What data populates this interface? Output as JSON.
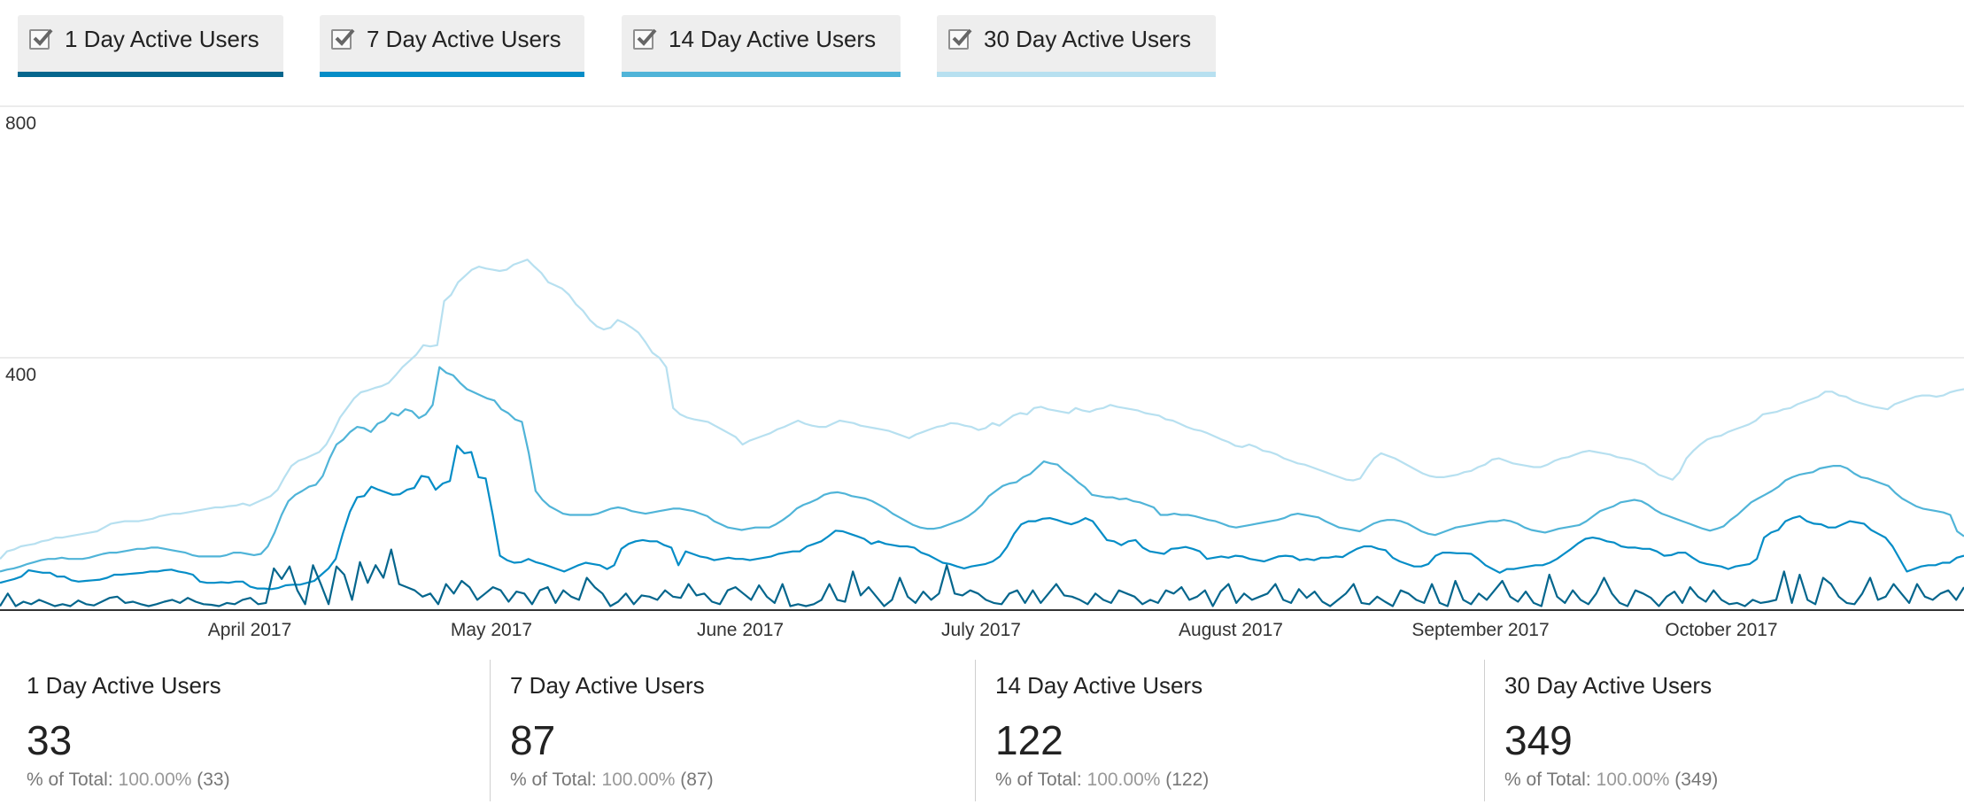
{
  "legend": {
    "items": [
      {
        "label": "1 Day Active Users",
        "color": "#05668d",
        "checked": true
      },
      {
        "label": "7 Day Active Users",
        "color": "#058dc7",
        "checked": true
      },
      {
        "label": "14 Day Active Users",
        "color": "#50b4d8",
        "checked": true
      },
      {
        "label": "30 Day Active Users",
        "color": "#b7e0f0",
        "checked": true
      }
    ]
  },
  "chart_data": {
    "type": "line",
    "ylim": [
      0,
      800
    ],
    "yticks": [
      "400",
      "800"
    ],
    "xticks": [
      "April 2017",
      "May 2017",
      "June 2017",
      "July 2017",
      "August 2017",
      "September 2017",
      "October 2017"
    ],
    "grid": true,
    "legend_position": "top",
    "series": [
      {
        "name": "1 Day Active Users",
        "color": "#05668d",
        "values": [
          5,
          25,
          5,
          12,
          8,
          15,
          10,
          5,
          8,
          5,
          14,
          8,
          6,
          12,
          18,
          20,
          10,
          12,
          8,
          5,
          8,
          12,
          15,
          10,
          18,
          12,
          8,
          7,
          5,
          10,
          8,
          15,
          18,
          8,
          10,
          65,
          48,
          68,
          30,
          8,
          70,
          40,
          8,
          68,
          55,
          15,
          75,
          42,
          70,
          50,
          95,
          40,
          35,
          30,
          20,
          25,
          8,
          40,
          25,
          45,
          35,
          15,
          25,
          35,
          30,
          12,
          28,
          25,
          8,
          30,
          35,
          10,
          30,
          20,
          15,
          50,
          35,
          25,
          5,
          12,
          25,
          8,
          22,
          20,
          15,
          30,
          20,
          18,
          40,
          22,
          25,
          12,
          8,
          30,
          35,
          25,
          15,
          38,
          20,
          10,
          40,
          5,
          8,
          5,
          8,
          15,
          40,
          15,
          12,
          60,
          22,
          35,
          20,
          5,
          15,
          50,
          20,
          10,
          28,
          15,
          25,
          70,
          25,
          22,
          30,
          25,
          15,
          10,
          8,
          25,
          30,
          10,
          30,
          10,
          25,
          40,
          22,
          20,
          15,
          8,
          25,
          15,
          10,
          30,
          25,
          20,
          8,
          15,
          10,
          30,
          25,
          35,
          15,
          20,
          30,
          5,
          28,
          40,
          10,
          25,
          15,
          20,
          25,
          40,
          15,
          10,
          32,
          18,
          28,
          12,
          5,
          15,
          25,
          40,
          10,
          8,
          20,
          12,
          5,
          30,
          25,
          15,
          10,
          40,
          10,
          5,
          45,
          15,
          8,
          25,
          15,
          30,
          45,
          20,
          12,
          28,
          10,
          5,
          55,
          20,
          10,
          30,
          15,
          8,
          25,
          50,
          25,
          10,
          5,
          30,
          25,
          18,
          5,
          20,
          28,
          10,
          35,
          20,
          12,
          30,
          15,
          8,
          10,
          5,
          15,
          10,
          12,
          15,
          60,
          10,
          55,
          15,
          8,
          50,
          40,
          20,
          10,
          8,
          25,
          50,
          15,
          20,
          40,
          25,
          10,
          40,
          20,
          15,
          25,
          30,
          15,
          35
        ]
      },
      {
        "name": "7 Day Active Users",
        "color": "#058dc7",
        "values": [
          42,
          45,
          48,
          52,
          62,
          60,
          58,
          58,
          52,
          52,
          46,
          44,
          45,
          46,
          47,
          50,
          55,
          55,
          56,
          57,
          58,
          60,
          60,
          62,
          63,
          60,
          58,
          55,
          44,
          42,
          42,
          43,
          42,
          44,
          44,
          36,
          33,
          33,
          32,
          34,
          38,
          39,
          39,
          42,
          45,
          55,
          65,
          80,
          120,
          155,
          178,
          180,
          195,
          190,
          186,
          182,
          183,
          190,
          193,
          212,
          210,
          190,
          200,
          204,
          260,
          248,
          250,
          210,
          208,
          150,
          85,
          78,
          74,
          75,
          80,
          75,
          72,
          68,
          64,
          60,
          65,
          70,
          74,
          72,
          70,
          64,
          70,
          96,
          104,
          108,
          110,
          108,
          108,
          102,
          98,
          70,
          92,
          88,
          84,
          82,
          78,
          80,
          82,
          80,
          80,
          78,
          80,
          82,
          84,
          88,
          90,
          92,
          92,
          100,
          104,
          108,
          116,
          125,
          124,
          120,
          116,
          112,
          104,
          108,
          104,
          102,
          100,
          100,
          98,
          90,
          86,
          80,
          74,
          72,
          68,
          65,
          68,
          70,
          72,
          76,
          84,
          99,
          120,
          135,
          140,
          140,
          144,
          145,
          142,
          138,
          135,
          139,
          145,
          140,
          125,
          110,
          108,
          102,
          108,
          110,
          98,
          92,
          90,
          88,
          96,
          97,
          99,
          96,
          92,
          80,
          82,
          84,
          82,
          85,
          84,
          80,
          78,
          76,
          80,
          84,
          85,
          84,
          78,
          80,
          78,
          82,
          82,
          84,
          83,
          90,
          96,
          100,
          100,
          96,
          94,
          82,
          76,
          72,
          68,
          68,
          72,
          85,
          90,
          90,
          89,
          89,
          88,
          80,
          70,
          64,
          58,
          64,
          64,
          66,
          68,
          70,
          70,
          74,
          80,
          88,
          96,
          105,
          112,
          114,
          112,
          108,
          106,
          100,
          98,
          98,
          96,
          96,
          92,
          85,
          86,
          90,
          90,
          82,
          75,
          72,
          70,
          68,
          64,
          68,
          70,
          72,
          80,
          114,
          122,
          126,
          140,
          145,
          148,
          140,
          136,
          135,
          130,
          130,
          135,
          140,
          138,
          136,
          126,
          120,
          114,
          100,
          80,
          60,
          64,
          68,
          70,
          70,
          74,
          74,
          82,
          85
        ]
      },
      {
        "name": "14 Day Active Users",
        "color": "#50b4d8",
        "values": [
          60,
          63,
          65,
          68,
          72,
          75,
          78,
          80,
          80,
          82,
          80,
          80,
          80,
          82,
          85,
          88,
          90,
          90,
          92,
          94,
          96,
          96,
          98,
          98,
          96,
          94,
          92,
          90,
          86,
          84,
          84,
          84,
          84,
          86,
          90,
          90,
          88,
          86,
          88,
          100,
          122,
          150,
          172,
          182,
          188,
          195,
          198,
          212,
          240,
          262,
          270,
          282,
          290,
          288,
          282,
          295,
          300,
          312,
          308,
          318,
          315,
          304,
          310,
          325,
          385,
          376,
          372,
          360,
          350,
          345,
          340,
          335,
          332,
          318,
          312,
          302,
          298,
          248,
          188,
          174,
          164,
          158,
          152,
          150,
          150,
          150,
          150,
          152,
          156,
          160,
          162,
          160,
          156,
          154,
          152,
          154,
          156,
          158,
          160,
          160,
          158,
          156,
          152,
          148,
          140,
          135,
          130,
          128,
          126,
          128,
          130,
          130,
          130,
          135,
          142,
          150,
          160,
          166,
          170,
          175,
          182,
          185,
          186,
          184,
          180,
          178,
          176,
          172,
          166,
          160,
          152,
          146,
          140,
          134,
          130,
          128,
          128,
          130,
          134,
          138,
          142,
          148,
          156,
          166,
          180,
          188,
          196,
          200,
          202,
          210,
          215,
          225,
          235,
          232,
          230,
          220,
          212,
          202,
          194,
          182,
          180,
          178,
          178,
          175,
          176,
          172,
          170,
          166,
          162,
          150,
          150,
          152,
          150,
          150,
          148,
          145,
          142,
          140,
          136,
          132,
          130,
          132,
          134,
          136,
          138,
          140,
          142,
          145,
          150,
          152,
          150,
          148,
          146,
          140,
          135,
          130,
          128,
          126,
          124,
          130,
          136,
          140,
          142,
          142,
          140,
          136,
          130,
          124,
          120,
          118,
          122,
          126,
          130,
          132,
          134,
          136,
          138,
          140,
          140,
          142,
          140,
          136,
          130,
          126,
          124,
          122,
          125,
          128,
          130,
          132,
          134,
          140,
          148,
          156,
          160,
          164,
          170,
          172,
          174,
          172,
          166,
          158,
          152,
          148,
          144,
          140,
          136,
          132,
          128,
          125,
          128,
          132,
          142,
          150,
          160,
          170,
          176,
          182,
          188,
          195,
          205,
          210,
          214,
          216,
          218,
          224,
          226,
          228,
          228,
          224,
          216,
          210,
          208,
          204,
          200,
          196,
          185,
          176,
          170,
          164,
          160,
          158,
          156,
          154,
          150,
          124,
          116
        ]
      },
      {
        "name": "30 Day Active Users",
        "color": "#b7e0f0",
        "values": [
          80,
          92,
          95,
          100,
          102,
          104,
          108,
          110,
          114,
          114,
          116,
          118,
          120,
          122,
          124,
          130,
          136,
          138,
          140,
          140,
          140,
          142,
          144,
          148,
          150,
          152,
          152,
          154,
          156,
          158,
          160,
          162,
          162,
          164,
          165,
          168,
          165,
          170,
          175,
          180,
          190,
          210,
          228,
          236,
          240,
          245,
          250,
          262,
          282,
          305,
          320,
          335,
          345,
          348,
          352,
          355,
          360,
          372,
          385,
          395,
          405,
          420,
          418,
          420,
          490,
          500,
          520,
          530,
          540,
          545,
          542,
          540,
          538,
          540,
          548,
          552,
          556,
          545,
          535,
          520,
          515,
          510,
          500,
          485,
          475,
          460,
          450,
          445,
          448,
          460,
          455,
          448,
          440,
          425,
          408,
          400,
          385,
          320,
          310,
          305,
          302,
          300,
          298,
          292,
          286,
          280,
          274,
          262,
          268,
          272,
          276,
          280,
          286,
          290,
          295,
          300,
          295,
          292,
          290,
          290,
          295,
          300,
          298,
          296,
          292,
          290,
          288,
          286,
          284,
          280,
          276,
          272,
          278,
          282,
          286,
          290,
          292,
          296,
          295,
          292,
          290,
          285,
          288,
          296,
          292,
          300,
          308,
          312,
          310,
          320,
          322,
          318,
          316,
          314,
          312,
          320,
          316,
          314,
          318,
          320,
          325,
          322,
          320,
          318,
          316,
          312,
          310,
          308,
          302,
          300,
          295,
          290,
          286,
          284,
          280,
          275,
          270,
          266,
          260,
          258,
          262,
          258,
          252,
          250,
          246,
          240,
          236,
          232,
          230,
          226,
          222,
          218,
          214,
          210,
          206,
          205,
          208,
          225,
          240,
          248,
          244,
          240,
          234,
          228,
          222,
          216,
          212,
          210,
          210,
          212,
          214,
          218,
          220,
          226,
          230,
          238,
          240,
          236,
          232,
          230,
          228,
          226,
          226,
          230,
          236,
          240,
          242,
          246,
          250,
          252,
          250,
          248,
          246,
          242,
          240,
          238,
          234,
          230,
          222,
          214,
          210,
          206,
          218,
          240,
          252,
          262,
          270,
          274,
          276,
          282,
          286,
          290,
          294,
          300,
          310,
          312,
          314,
          318,
          320,
          326,
          330,
          334,
          338,
          346,
          346,
          340,
          338,
          332,
          328,
          325,
          322,
          320,
          318,
          326,
          330,
          334,
          338,
          340,
          340,
          338,
          340,
          345,
          348,
          350
        ]
      }
    ]
  },
  "metrics": [
    {
      "title": "1 Day Active Users",
      "value": "33",
      "sub_prefix": "% of Total: ",
      "sub_pct": "100.00%",
      "sub_suffix": " (33)"
    },
    {
      "title": "7 Day Active Users",
      "value": "87",
      "sub_prefix": "% of Total: ",
      "sub_pct": "100.00%",
      "sub_suffix": " (87)"
    },
    {
      "title": "14 Day Active Users",
      "value": "122",
      "sub_prefix": "% of Total: ",
      "sub_pct": "100.00%",
      "sub_suffix": " (122)"
    },
    {
      "title": "30 Day Active Users",
      "value": "349",
      "sub_prefix": "% of Total: ",
      "sub_pct": "100.00%",
      "sub_suffix": " (349)"
    }
  ]
}
